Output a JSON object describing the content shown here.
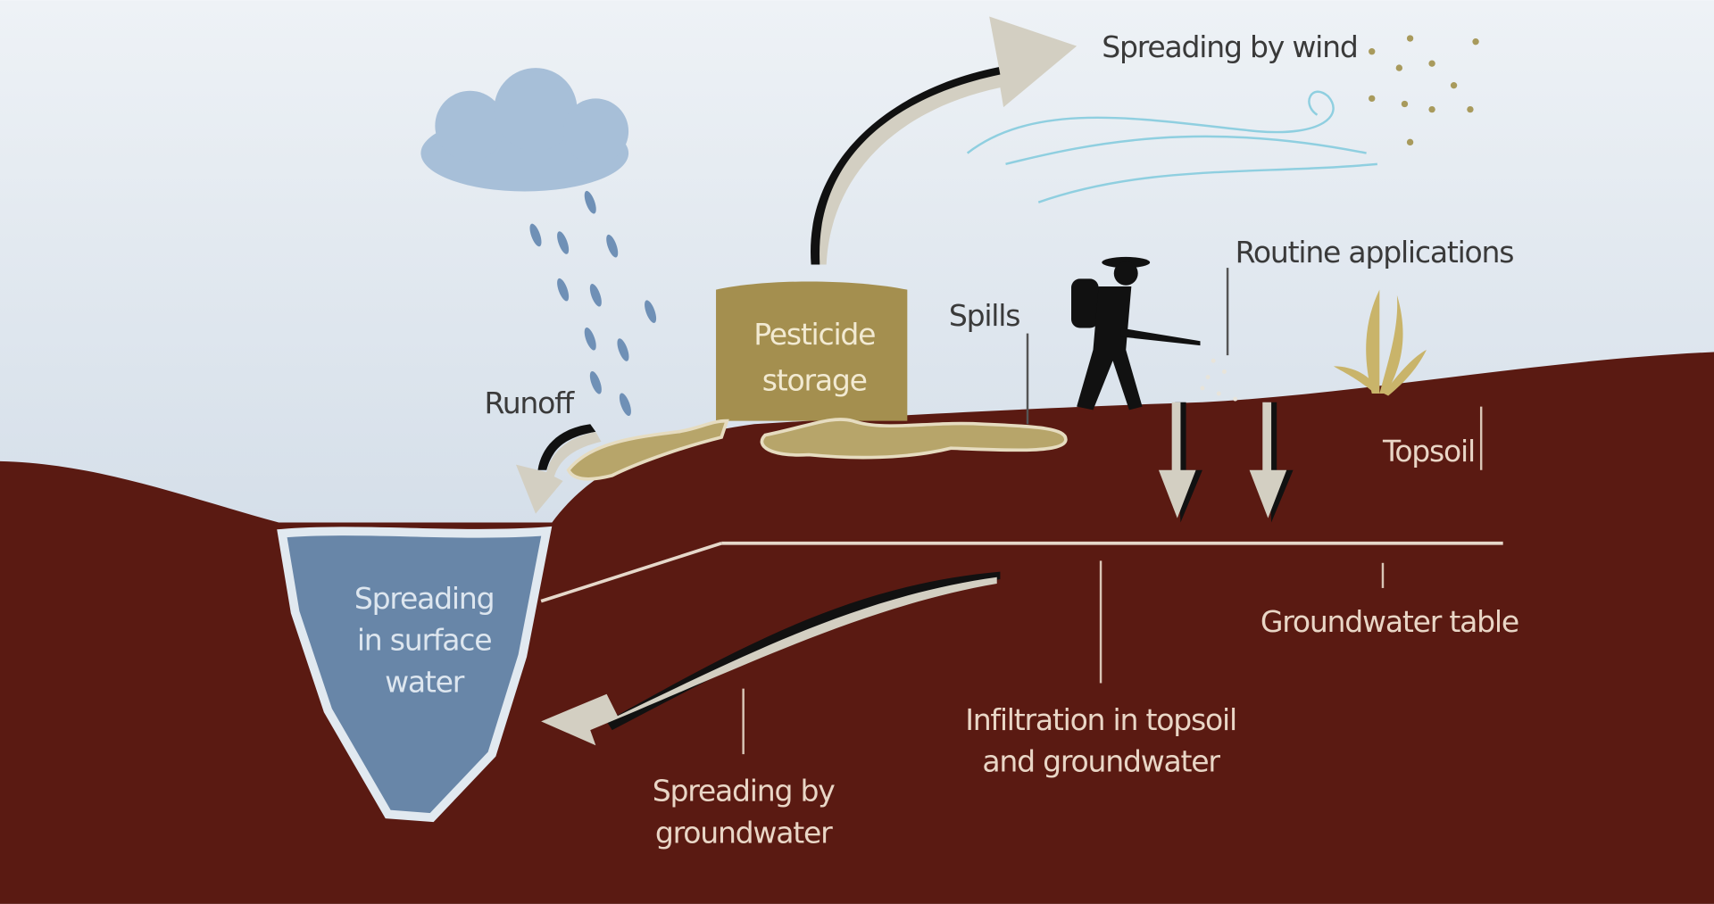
{
  "labels": {
    "wind": [
      "Spreading by wind"
    ],
    "routine": [
      "Routine applications"
    ],
    "spills": [
      "Spills"
    ],
    "storage": [
      "Pesticide",
      "storage"
    ],
    "runoff": [
      "Runoff"
    ],
    "topsoil": [
      "Topsoil"
    ],
    "surface": [
      "Spreading",
      "in surface",
      "water"
    ],
    "groundwater_table": [
      "Groundwater table"
    ],
    "infiltration": [
      "Infiltration in topsoil",
      "and groundwater"
    ],
    "groundwater_spread": [
      "Spreading by",
      "groundwater"
    ]
  }
}
